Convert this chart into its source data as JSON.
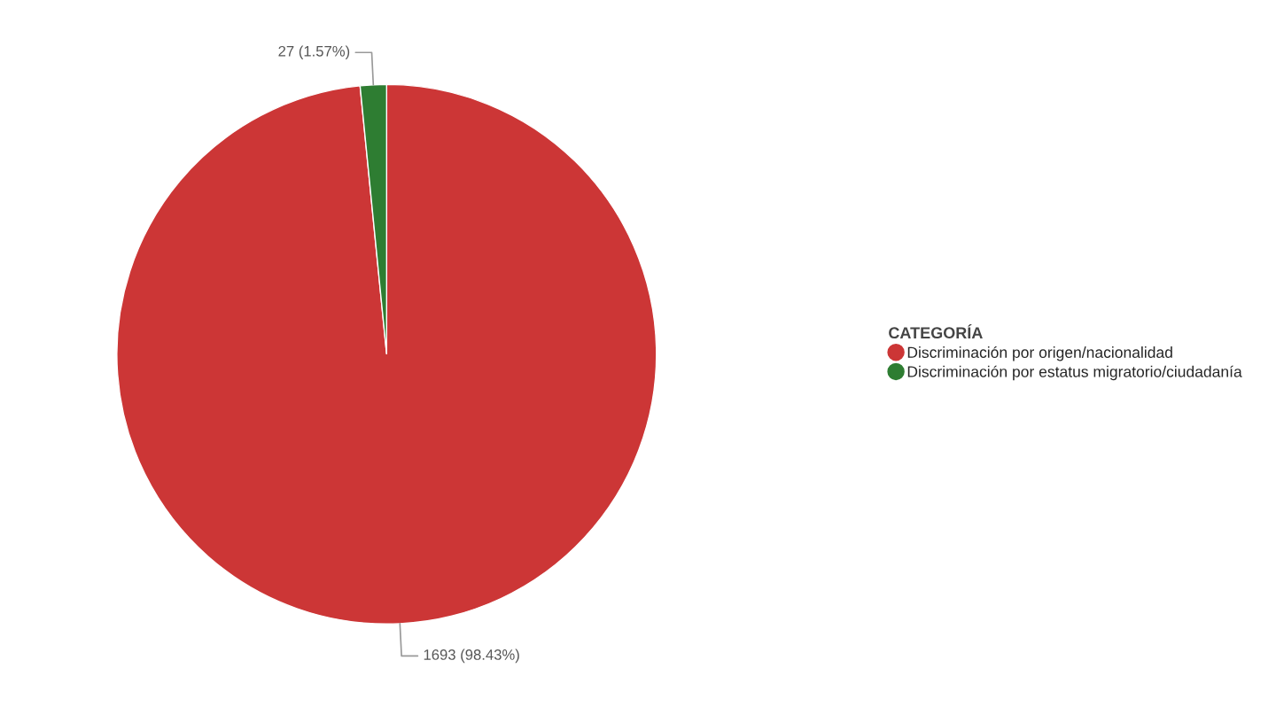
{
  "chart_data": {
    "type": "pie",
    "legend_title": "CATEGORÍA",
    "legend": "right",
    "categories": [
      "Discriminación por origen/nacionalidad",
      "Discriminación por estatus migratorio/ciudadanía"
    ],
    "values": [
      1693,
      27
    ],
    "colors": [
      "#cc3636",
      "#2e7d32"
    ],
    "value_labels": [
      "1693 (98.43%)",
      "27 (1.57%)"
    ]
  }
}
